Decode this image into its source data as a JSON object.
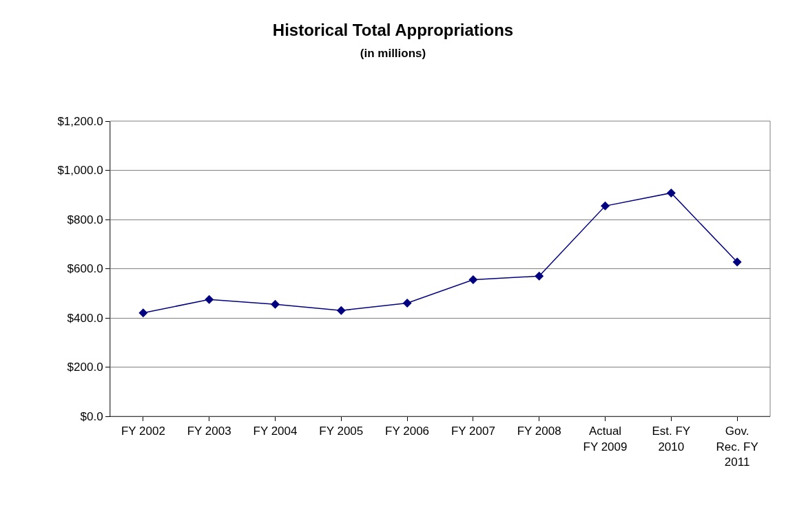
{
  "chart_data": {
    "type": "line",
    "title": "Historical Total Appropriations",
    "subtitle": "(in millions)",
    "categories": [
      "FY 2002",
      "FY 2003",
      "FY 2004",
      "FY 2005",
      "FY 2006",
      "FY 2007",
      "FY 2008",
      "Actual FY 2009",
      "Est. FY 2010",
      "Gov. Rec. FY 2011"
    ],
    "series": [
      {
        "color": "#000080",
        "values": [
          420,
          475,
          455,
          430,
          460,
          555,
          570,
          855,
          908,
          627
        ]
      }
    ],
    "ylim": [
      0,
      1200
    ],
    "yticks": [
      {
        "value": 0,
        "label": "$0.0"
      },
      {
        "value": 200,
        "label": "$200.0"
      },
      {
        "value": 400,
        "label": "$400.0"
      },
      {
        "value": 600,
        "label": "$600.0"
      },
      {
        "value": 800,
        "label": "$800.0"
      },
      {
        "value": 1000,
        "label": "$1,000.0"
      },
      {
        "value": 1200,
        "label": "$1,200.0"
      }
    ],
    "grid": "y",
    "legend": false,
    "marker": "diamond",
    "line_style": "solid"
  }
}
